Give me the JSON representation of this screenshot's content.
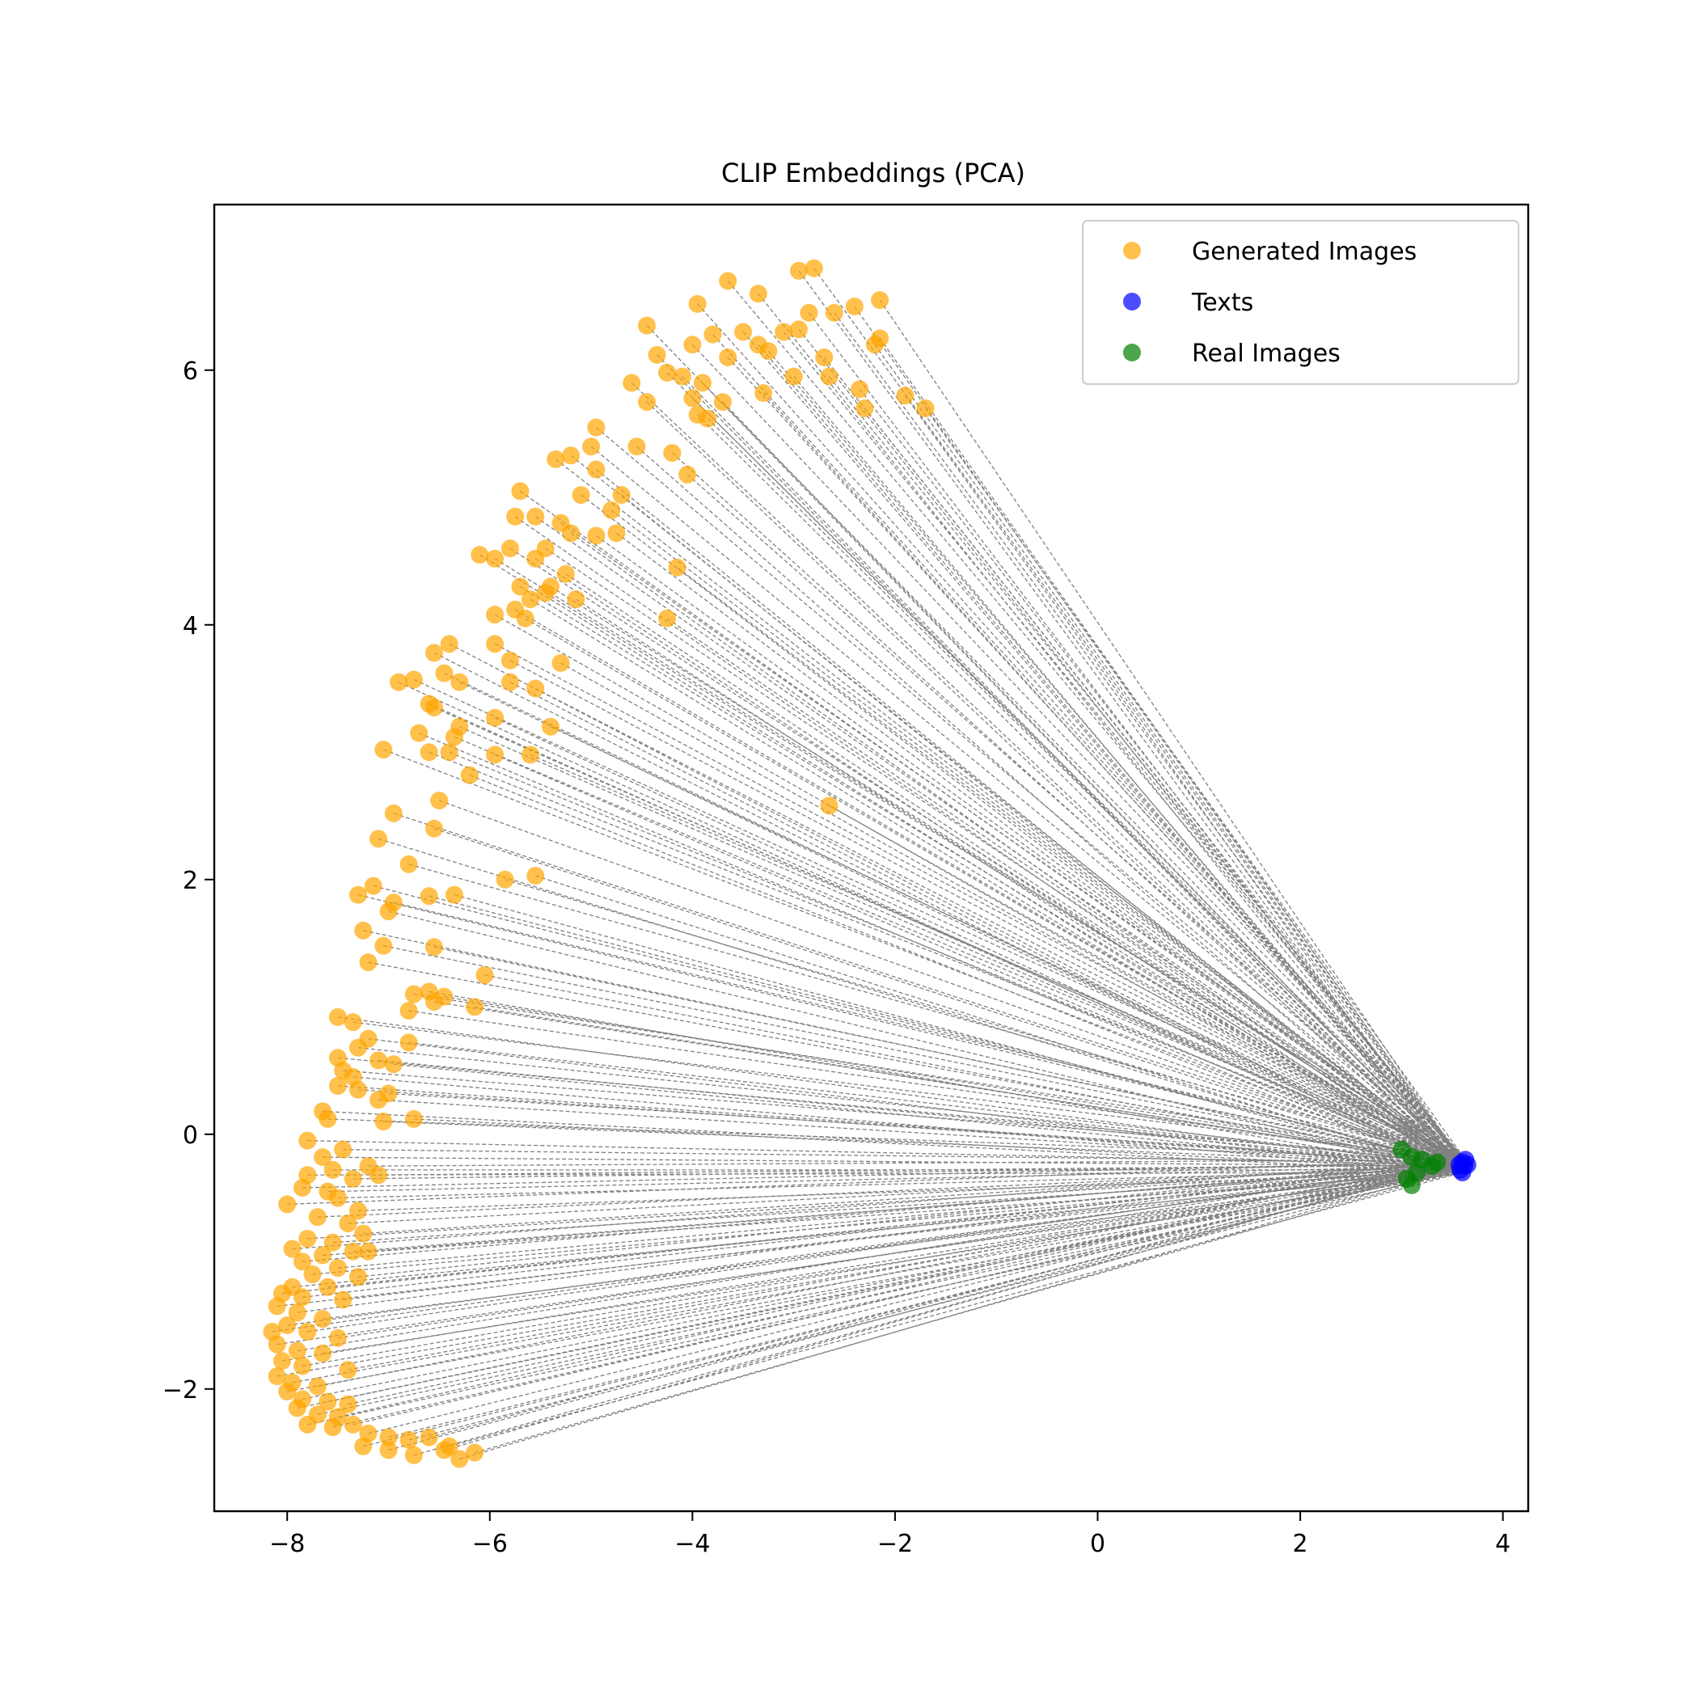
{
  "chart_data": {
    "type": "scatter",
    "title": "CLIP Embeddings (PCA)",
    "xlabel": "",
    "ylabel": "",
    "xlim": [
      -8.72,
      4.25
    ],
    "ylim": [
      -2.96,
      7.3
    ],
    "xticks": [
      -8,
      -6,
      -4,
      -2,
      0,
      2,
      4
    ],
    "yticks": [
      -2,
      0,
      2,
      4,
      6
    ],
    "xtick_labels": [
      "−8",
      "−6",
      "−4",
      "−2",
      "0",
      "2",
      "4"
    ],
    "ytick_labels": [
      "−2",
      "0",
      "2",
      "4",
      "6"
    ],
    "grid": false,
    "legend": {
      "placement": "top-right",
      "entries": [
        "Generated Images",
        "Texts",
        "Real Images"
      ]
    },
    "connector_lines": {
      "from": "Generated Images",
      "to": "Texts",
      "style": "dashed",
      "color": "#808080"
    },
    "series": [
      {
        "name": "Generated Images",
        "color": "#FFA500",
        "alpha": 0.7,
        "points": [
          [
            -2.15,
            6.55
          ],
          [
            -2.8,
            6.8
          ],
          [
            -2.95,
            6.78
          ],
          [
            -3.65,
            6.7
          ],
          [
            -3.35,
            6.6
          ],
          [
            -3.95,
            6.52
          ],
          [
            -4.45,
            6.35
          ],
          [
            -2.4,
            6.5
          ],
          [
            -2.6,
            6.45
          ],
          [
            -2.85,
            6.45
          ],
          [
            -3.8,
            6.28
          ],
          [
            -3.5,
            6.3
          ],
          [
            -3.1,
            6.3
          ],
          [
            -2.95,
            6.32
          ],
          [
            -2.15,
            6.25
          ],
          [
            -2.2,
            6.2
          ],
          [
            -3.35,
            6.2
          ],
          [
            -4.0,
            6.2
          ],
          [
            -4.35,
            6.12
          ],
          [
            -3.65,
            6.1
          ],
          [
            -3.25,
            6.15
          ],
          [
            -2.7,
            6.1
          ],
          [
            -4.25,
            5.98
          ],
          [
            -4.1,
            5.95
          ],
          [
            -3.9,
            5.9
          ],
          [
            -3.0,
            5.95
          ],
          [
            -2.65,
            5.95
          ],
          [
            -4.6,
            5.9
          ],
          [
            -3.3,
            5.82
          ],
          [
            -2.35,
            5.85
          ],
          [
            -1.9,
            5.8
          ],
          [
            -1.7,
            5.7
          ],
          [
            -4.45,
            5.75
          ],
          [
            -4.0,
            5.78
          ],
          [
            -3.7,
            5.75
          ],
          [
            -3.85,
            5.62
          ],
          [
            -2.3,
            5.7
          ],
          [
            -3.95,
            5.65
          ],
          [
            -4.95,
            5.55
          ],
          [
            -4.55,
            5.4
          ],
          [
            -5.0,
            5.4
          ],
          [
            -5.2,
            5.33
          ],
          [
            -5.35,
            5.3
          ],
          [
            -4.2,
            5.35
          ],
          [
            -4.95,
            5.22
          ],
          [
            -4.05,
            5.18
          ],
          [
            -4.7,
            5.02
          ],
          [
            -5.7,
            5.05
          ],
          [
            -5.1,
            5.02
          ],
          [
            -4.8,
            4.9
          ],
          [
            -5.55,
            4.85
          ],
          [
            -5.75,
            4.85
          ],
          [
            -5.3,
            4.8
          ],
          [
            -5.2,
            4.72
          ],
          [
            -4.95,
            4.7
          ],
          [
            -4.75,
            4.72
          ],
          [
            -5.45,
            4.6
          ],
          [
            -5.8,
            4.6
          ],
          [
            -6.1,
            4.55
          ],
          [
            -5.95,
            4.52
          ],
          [
            -5.55,
            4.52
          ],
          [
            -4.15,
            4.45
          ],
          [
            -5.25,
            4.4
          ],
          [
            -5.4,
            4.3
          ],
          [
            -5.7,
            4.3
          ],
          [
            -5.6,
            4.2
          ],
          [
            -5.45,
            4.25
          ],
          [
            -5.15,
            4.2
          ],
          [
            -5.75,
            4.12
          ],
          [
            -5.95,
            4.08
          ],
          [
            -5.65,
            4.05
          ],
          [
            -4.25,
            4.05
          ],
          [
            -6.4,
            3.85
          ],
          [
            -5.95,
            3.85
          ],
          [
            -6.55,
            3.78
          ],
          [
            -5.8,
            3.72
          ],
          [
            -5.3,
            3.7
          ],
          [
            -6.45,
            3.62
          ],
          [
            -6.3,
            3.55
          ],
          [
            -6.9,
            3.55
          ],
          [
            -6.75,
            3.57
          ],
          [
            -5.8,
            3.55
          ],
          [
            -5.55,
            3.5
          ],
          [
            -6.6,
            3.38
          ],
          [
            -6.55,
            3.35
          ],
          [
            -6.3,
            3.2
          ],
          [
            -5.95,
            3.27
          ],
          [
            -5.4,
            3.2
          ],
          [
            -6.7,
            3.15
          ],
          [
            -6.35,
            3.12
          ],
          [
            -7.05,
            3.02
          ],
          [
            -6.6,
            3.0
          ],
          [
            -6.4,
            3.0
          ],
          [
            -5.95,
            2.98
          ],
          [
            -5.6,
            2.98
          ],
          [
            -6.2,
            2.82
          ],
          [
            -2.65,
            2.58
          ],
          [
            -6.5,
            2.62
          ],
          [
            -6.95,
            2.52
          ],
          [
            -6.55,
            2.4
          ],
          [
            -7.1,
            2.32
          ],
          [
            -6.8,
            2.12
          ],
          [
            -5.55,
            2.03
          ],
          [
            -5.85,
            2.0
          ],
          [
            -7.15,
            1.95
          ],
          [
            -7.3,
            1.88
          ],
          [
            -6.6,
            1.87
          ],
          [
            -6.35,
            1.88
          ],
          [
            -6.95,
            1.82
          ],
          [
            -7.0,
            1.75
          ],
          [
            -7.25,
            1.6
          ],
          [
            -7.05,
            1.48
          ],
          [
            -6.55,
            1.47
          ],
          [
            -7.2,
            1.35
          ],
          [
            -6.05,
            1.25
          ],
          [
            -6.75,
            1.1
          ],
          [
            -6.6,
            1.12
          ],
          [
            -6.45,
            1.08
          ],
          [
            -6.55,
            1.04
          ],
          [
            -6.8,
            0.97
          ],
          [
            -6.15,
            1.0
          ],
          [
            -7.5,
            0.92
          ],
          [
            -7.35,
            0.88
          ],
          [
            -7.2,
            0.75
          ],
          [
            -7.3,
            0.68
          ],
          [
            -6.8,
            0.72
          ],
          [
            -7.5,
            0.6
          ],
          [
            -7.1,
            0.58
          ],
          [
            -6.95,
            0.55
          ],
          [
            -7.45,
            0.5
          ],
          [
            -7.35,
            0.45
          ],
          [
            -7.5,
            0.38
          ],
          [
            -7.3,
            0.35
          ],
          [
            -7.0,
            0.32
          ],
          [
            -7.1,
            0.27
          ],
          [
            -7.65,
            0.18
          ],
          [
            -7.6,
            0.12
          ],
          [
            -6.75,
            0.12
          ],
          [
            -7.05,
            0.1
          ],
          [
            -7.8,
            -0.05
          ],
          [
            -7.45,
            -0.12
          ],
          [
            -7.65,
            -0.18
          ],
          [
            -7.55,
            -0.28
          ],
          [
            -7.2,
            -0.25
          ],
          [
            -7.8,
            -0.32
          ],
          [
            -7.1,
            -0.32
          ],
          [
            -7.35,
            -0.35
          ],
          [
            -7.85,
            -0.42
          ],
          [
            -7.6,
            -0.45
          ],
          [
            -7.5,
            -0.5
          ],
          [
            -8.0,
            -0.55
          ],
          [
            -7.3,
            -0.6
          ],
          [
            -7.7,
            -0.65
          ],
          [
            -7.4,
            -0.7
          ],
          [
            -7.25,
            -0.78
          ],
          [
            -7.8,
            -0.82
          ],
          [
            -7.55,
            -0.85
          ],
          [
            -7.95,
            -0.9
          ],
          [
            -7.65,
            -0.95
          ],
          [
            -7.35,
            -0.92
          ],
          [
            -7.2,
            -0.92
          ],
          [
            -7.85,
            -1.0
          ],
          [
            -7.5,
            -1.05
          ],
          [
            -7.75,
            -1.1
          ],
          [
            -7.3,
            -1.12
          ],
          [
            -7.95,
            -1.2
          ],
          [
            -7.6,
            -1.2
          ],
          [
            -8.05,
            -1.25
          ],
          [
            -7.85,
            -1.28
          ],
          [
            -7.45,
            -1.3
          ],
          [
            -8.1,
            -1.35
          ],
          [
            -7.9,
            -1.4
          ],
          [
            -7.65,
            -1.45
          ],
          [
            -8.0,
            -1.5
          ],
          [
            -8.15,
            -1.55
          ],
          [
            -7.8,
            -1.55
          ],
          [
            -7.5,
            -1.6
          ],
          [
            -8.1,
            -1.65
          ],
          [
            -7.9,
            -1.7
          ],
          [
            -7.65,
            -1.72
          ],
          [
            -8.05,
            -1.78
          ],
          [
            -7.85,
            -1.82
          ],
          [
            -7.4,
            -1.85
          ],
          [
            -8.1,
            -1.9
          ],
          [
            -7.95,
            -1.95
          ],
          [
            -7.7,
            -1.98
          ],
          [
            -8.0,
            -2.02
          ],
          [
            -7.85,
            -2.08
          ],
          [
            -7.6,
            -2.1
          ],
          [
            -7.4,
            -2.12
          ],
          [
            -7.9,
            -2.15
          ],
          [
            -7.7,
            -2.2
          ],
          [
            -7.5,
            -2.22
          ],
          [
            -7.8,
            -2.28
          ],
          [
            -7.55,
            -2.3
          ],
          [
            -7.35,
            -2.28
          ],
          [
            -7.2,
            -2.35
          ],
          [
            -7.0,
            -2.38
          ],
          [
            -6.8,
            -2.4
          ],
          [
            -6.6,
            -2.38
          ],
          [
            -6.4,
            -2.45
          ],
          [
            -7.25,
            -2.45
          ],
          [
            -7.0,
            -2.48
          ],
          [
            -6.75,
            -2.52
          ],
          [
            -6.3,
            -2.55
          ],
          [
            -6.15,
            -2.5
          ],
          [
            -6.45,
            -2.48
          ]
        ]
      },
      {
        "name": "Texts",
        "color": "#0000FF",
        "alpha": 0.7,
        "points": [
          [
            3.6,
            -0.22
          ],
          [
            3.62,
            -0.25
          ],
          [
            3.58,
            -0.28
          ],
          [
            3.63,
            -0.2
          ],
          [
            3.6,
            -0.3
          ],
          [
            3.65,
            -0.24
          ],
          [
            3.57,
            -0.24
          ]
        ]
      },
      {
        "name": "Real Images",
        "color": "#008000",
        "alpha": 0.7,
        "points": [
          [
            3.0,
            -0.12
          ],
          [
            3.1,
            -0.18
          ],
          [
            3.2,
            -0.2
          ],
          [
            3.3,
            -0.25
          ],
          [
            3.05,
            -0.35
          ],
          [
            3.15,
            -0.3
          ],
          [
            3.35,
            -0.22
          ],
          [
            3.1,
            -0.4
          ]
        ]
      }
    ]
  }
}
